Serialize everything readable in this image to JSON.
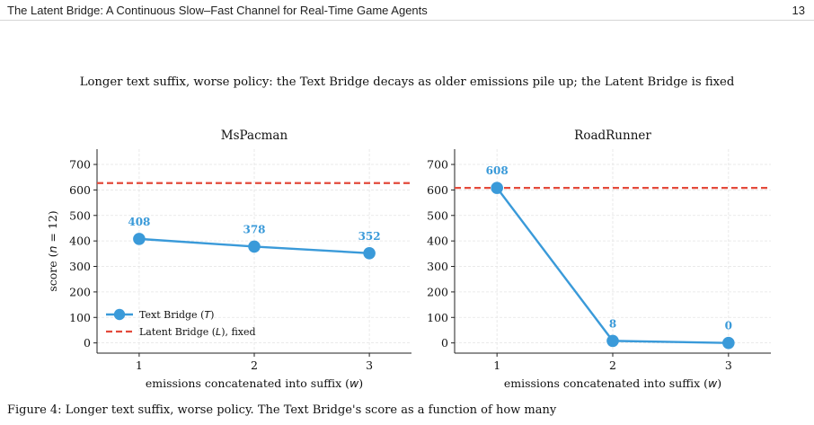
{
  "header": {
    "title": "The Latent Bridge: A Continuous Slow–Fast Channel for Real-Time Game Agents",
    "page_number": "13"
  },
  "figure_title": "Longer text suffix, worse policy: the Text Bridge decays as older emissions pile up; the Latent Bridge is fixed",
  "caption": "Figure 4: Longer text suffix, worse policy. The Text Bridge's score as a function of how many",
  "colors": {
    "text_bridge": "#3a9ad9",
    "latent_bridge": "#e34a3b"
  },
  "chart_data": [
    {
      "type": "line",
      "title": "MsPacman",
      "xlabel": "emissions concatenated into suffix (w)",
      "ylabel": "score (n = 12)",
      "categories": [
        1,
        2,
        3
      ],
      "ylim": [
        -40,
        760
      ],
      "yticks": [
        0,
        100,
        200,
        300,
        400,
        500,
        600,
        700
      ],
      "grid": true,
      "legend": "lower-left",
      "series": [
        {
          "name": "Text Bridge (T)",
          "values": [
            408,
            378,
            352
          ],
          "labels": [
            "408",
            "378",
            "352"
          ],
          "style": "solid-marker"
        },
        {
          "name": "Latent Bridge (L), fixed",
          "value": 627,
          "style": "dashed-horizontal"
        }
      ]
    },
    {
      "type": "line",
      "title": "RoadRunner",
      "xlabel": "emissions concatenated into suffix (w)",
      "ylabel": "",
      "categories": [
        1,
        2,
        3
      ],
      "ylim": [
        -40,
        760
      ],
      "yticks": [
        0,
        100,
        200,
        300,
        400,
        500,
        600,
        700
      ],
      "grid": true,
      "series": [
        {
          "name": "Text Bridge (T)",
          "values": [
            608,
            8,
            0
          ],
          "labels": [
            "608",
            "8",
            "0"
          ],
          "style": "solid-marker"
        },
        {
          "name": "Latent Bridge (L), fixed",
          "value": 608,
          "style": "dashed-horizontal"
        }
      ]
    }
  ]
}
